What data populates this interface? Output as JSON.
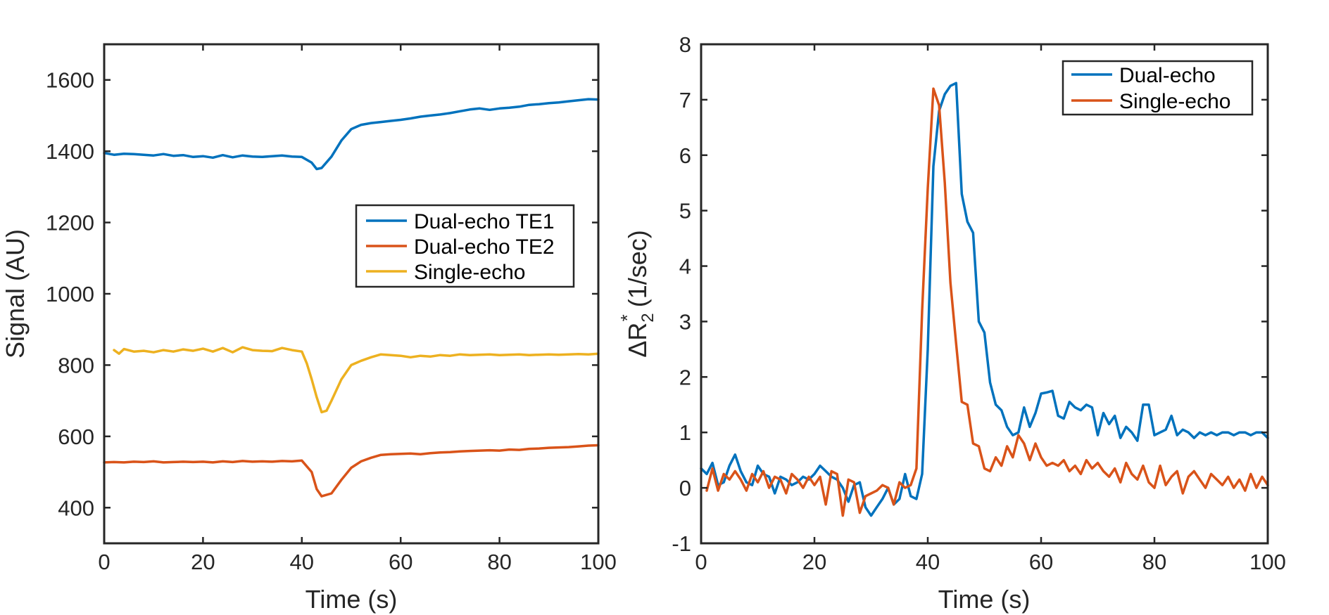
{
  "chart_data": [
    {
      "type": "line",
      "title": "",
      "xlabel": "Time (s)",
      "ylabel": "Signal (AU)",
      "xlim": [
        0,
        100
      ],
      "ylim": [
        300,
        1700
      ],
      "xticks": [
        0,
        20,
        40,
        60,
        80,
        100
      ],
      "xtick_labels": [
        "0",
        "20",
        "40",
        "60",
        "80",
        "100"
      ],
      "yticks": [
        400,
        600,
        800,
        1000,
        1200,
        1400,
        1600
      ],
      "ytick_labels": [
        "400",
        "600",
        "800",
        "1000",
        "1200",
        "1400",
        "1600"
      ],
      "legend_position": "center-right",
      "series": [
        {
          "name": "Dual-echo TE1",
          "color": "#0072BD",
          "x": [
            0,
            2,
            4,
            6,
            8,
            10,
            12,
            14,
            16,
            18,
            20,
            22,
            24,
            26,
            28,
            30,
            32,
            34,
            36,
            38,
            40,
            42,
            43,
            44,
            46,
            48,
            50,
            52,
            54,
            56,
            58,
            60,
            62,
            64,
            66,
            68,
            70,
            72,
            74,
            76,
            78,
            80,
            82,
            84,
            86,
            88,
            90,
            92,
            94,
            96,
            98,
            100
          ],
          "y": [
            1395,
            1390,
            1393,
            1392,
            1390,
            1388,
            1392,
            1387,
            1389,
            1384,
            1386,
            1382,
            1389,
            1383,
            1388,
            1385,
            1384,
            1386,
            1388,
            1385,
            1384,
            1368,
            1350,
            1353,
            1385,
            1430,
            1462,
            1474,
            1479,
            1482,
            1485,
            1488,
            1492,
            1497,
            1500,
            1503,
            1507,
            1512,
            1517,
            1520,
            1516,
            1520,
            1522,
            1525,
            1530,
            1532,
            1535,
            1537,
            1540,
            1543,
            1546,
            1545
          ]
        },
        {
          "name": "Dual-echo TE2",
          "color": "#D95319",
          "x": [
            0,
            2,
            4,
            6,
            8,
            10,
            12,
            14,
            16,
            18,
            20,
            22,
            24,
            26,
            28,
            30,
            32,
            34,
            36,
            38,
            40,
            42,
            43,
            44,
            46,
            48,
            50,
            52,
            54,
            56,
            58,
            60,
            62,
            64,
            66,
            68,
            70,
            72,
            74,
            76,
            78,
            80,
            82,
            84,
            86,
            88,
            90,
            92,
            94,
            96,
            98,
            100
          ],
          "y": [
            527,
            528,
            527,
            529,
            528,
            530,
            527,
            528,
            529,
            528,
            529,
            527,
            530,
            528,
            531,
            529,
            530,
            529,
            531,
            530,
            532,
            500,
            452,
            432,
            440,
            478,
            512,
            530,
            540,
            548,
            550,
            551,
            552,
            550,
            553,
            555,
            556,
            558,
            559,
            560,
            561,
            560,
            563,
            562,
            565,
            566,
            568,
            569,
            570,
            572,
            574,
            575
          ]
        },
        {
          "name": "Single-echo",
          "color": "#EDB120",
          "x": [
            2,
            3,
            4,
            6,
            8,
            10,
            12,
            14,
            16,
            18,
            20,
            22,
            24,
            26,
            28,
            30,
            32,
            34,
            36,
            38,
            40,
            41,
            42,
            43,
            44,
            45,
            46,
            48,
            50,
            52,
            54,
            56,
            58,
            60,
            62,
            64,
            66,
            68,
            70,
            72,
            74,
            76,
            78,
            80,
            82,
            84,
            86,
            88,
            90,
            92,
            94,
            96,
            98,
            100
          ],
          "y": [
            842,
            832,
            845,
            838,
            840,
            836,
            842,
            838,
            844,
            840,
            846,
            838,
            848,
            836,
            850,
            842,
            840,
            839,
            848,
            842,
            838,
            805,
            760,
            710,
            668,
            672,
            700,
            760,
            800,
            812,
            822,
            830,
            828,
            826,
            822,
            826,
            824,
            828,
            826,
            830,
            828,
            829,
            830,
            828,
            829,
            830,
            828,
            829,
            830,
            829,
            830,
            831,
            830,
            832
          ]
        }
      ]
    },
    {
      "type": "line",
      "title": "",
      "xlabel": "Time (s)",
      "ylabel": "ΔR2* (1/sec)",
      "ylabel_parts": {
        "prefix": "ΔR",
        "subscript": "2",
        "superscript": "*",
        "suffix": " (1/sec)"
      },
      "xlim": [
        0,
        100
      ],
      "ylim": [
        -1,
        8
      ],
      "xticks": [
        0,
        20,
        40,
        60,
        80,
        100
      ],
      "xtick_labels": [
        "0",
        "20",
        "40",
        "60",
        "80",
        "100"
      ],
      "yticks": [
        -1,
        0,
        1,
        2,
        3,
        4,
        5,
        6,
        7,
        8
      ],
      "ytick_labels": [
        "-1",
        "0",
        "1",
        "2",
        "3",
        "4",
        "5",
        "6",
        "7",
        "8"
      ],
      "legend_position": "top-right",
      "series": [
        {
          "name": "Dual-echo",
          "color": "#0072BD",
          "x": [
            0,
            1,
            2,
            3,
            4,
            5,
            6,
            7,
            8,
            9,
            10,
            11,
            12,
            13,
            14,
            15,
            16,
            17,
            18,
            19,
            20,
            21,
            22,
            23,
            24,
            25,
            26,
            27,
            28,
            29,
            30,
            31,
            32,
            33,
            34,
            35,
            36,
            37,
            38,
            39,
            40,
            41,
            42,
            43,
            44,
            45,
            46,
            47,
            48,
            49,
            50,
            51,
            52,
            53,
            54,
            55,
            56,
            57,
            58,
            59,
            60,
            61,
            62,
            63,
            64,
            65,
            66,
            67,
            68,
            69,
            70,
            71,
            72,
            73,
            74,
            75,
            76,
            77,
            78,
            79,
            80,
            81,
            82,
            83,
            84,
            85,
            86,
            87,
            88,
            89,
            90,
            91,
            92,
            93,
            94,
            95,
            96,
            97,
            98,
            99,
            100
          ],
          "y": [
            0.35,
            0.25,
            0.45,
            0.05,
            0.1,
            0.4,
            0.6,
            0.3,
            0.1,
            0.05,
            0.4,
            0.25,
            0.2,
            -0.1,
            0.2,
            0.15,
            0.05,
            0.1,
            0.2,
            0.15,
            0.25,
            0.4,
            0.3,
            0.2,
            0.15,
            0.0,
            -0.25,
            0.05,
            0.1,
            -0.35,
            -0.5,
            -0.35,
            -0.2,
            0.0,
            -0.3,
            -0.2,
            0.25,
            -0.15,
            -0.2,
            0.25,
            2.5,
            5.8,
            6.8,
            7.1,
            7.25,
            7.3,
            5.3,
            4.8,
            4.6,
            3.0,
            2.8,
            1.9,
            1.5,
            1.4,
            1.1,
            0.95,
            1.0,
            1.45,
            1.1,
            1.35,
            1.7,
            1.72,
            1.75,
            1.3,
            1.25,
            1.55,
            1.45,
            1.4,
            1.5,
            1.45,
            0.95,
            1.35,
            1.15,
            1.3,
            0.9,
            1.1,
            1.0,
            0.85,
            1.5,
            1.5,
            0.95,
            1.0,
            1.05,
            1.3,
            0.95,
            1.05,
            1.0,
            0.9,
            1.0,
            0.95,
            1.0,
            0.95,
            1.0,
            1.0,
            0.95,
            1.0,
            1.0,
            0.95,
            1.0,
            1.0,
            0.9
          ]
        },
        {
          "name": "Single-echo",
          "color": "#D95319",
          "x": [
            1,
            2,
            3,
            4,
            5,
            6,
            7,
            8,
            9,
            10,
            11,
            12,
            13,
            14,
            15,
            16,
            17,
            18,
            19,
            20,
            21,
            22,
            23,
            24,
            25,
            26,
            27,
            28,
            29,
            30,
            31,
            32,
            33,
            34,
            35,
            36,
            37,
            38,
            39,
            40,
            41,
            42,
            43,
            44,
            45,
            46,
            47,
            48,
            49,
            50,
            51,
            52,
            53,
            54,
            55,
            56,
            57,
            58,
            59,
            60,
            61,
            62,
            63,
            64,
            65,
            66,
            67,
            68,
            69,
            70,
            71,
            72,
            73,
            74,
            75,
            76,
            77,
            78,
            79,
            80,
            81,
            82,
            83,
            84,
            85,
            86,
            87,
            88,
            89,
            90,
            91,
            92,
            93,
            94,
            95,
            96,
            97,
            98,
            99,
            100
          ],
          "y": [
            -0.05,
            0.35,
            -0.05,
            0.25,
            0.15,
            0.3,
            0.15,
            -0.05,
            0.25,
            0.1,
            0.3,
            0.0,
            0.2,
            0.15,
            -0.1,
            0.25,
            0.15,
            0.0,
            0.2,
            0.05,
            0.2,
            -0.3,
            0.3,
            0.25,
            -0.5,
            0.15,
            0.1,
            -0.45,
            -0.15,
            -0.1,
            -0.05,
            0.05,
            0.0,
            -0.3,
            0.1,
            0.0,
            0.05,
            0.35,
            3.2,
            5.4,
            7.2,
            6.9,
            5.5,
            3.7,
            2.6,
            1.55,
            1.5,
            0.8,
            0.75,
            0.35,
            0.3,
            0.55,
            0.4,
            0.75,
            0.55,
            0.95,
            0.8,
            0.5,
            0.8,
            0.55,
            0.4,
            0.45,
            0.4,
            0.5,
            0.3,
            0.4,
            0.25,
            0.5,
            0.35,
            0.45,
            0.3,
            0.2,
            0.35,
            0.1,
            0.45,
            0.25,
            0.15,
            0.4,
            0.1,
            0.0,
            0.4,
            0.05,
            0.2,
            0.3,
            -0.1,
            0.2,
            0.3,
            0.15,
            0.0,
            0.25,
            0.15,
            0.05,
            0.2,
            0.0,
            0.15,
            -0.05,
            0.25,
            0.0,
            0.2,
            0.05
          ]
        }
      ]
    }
  ]
}
